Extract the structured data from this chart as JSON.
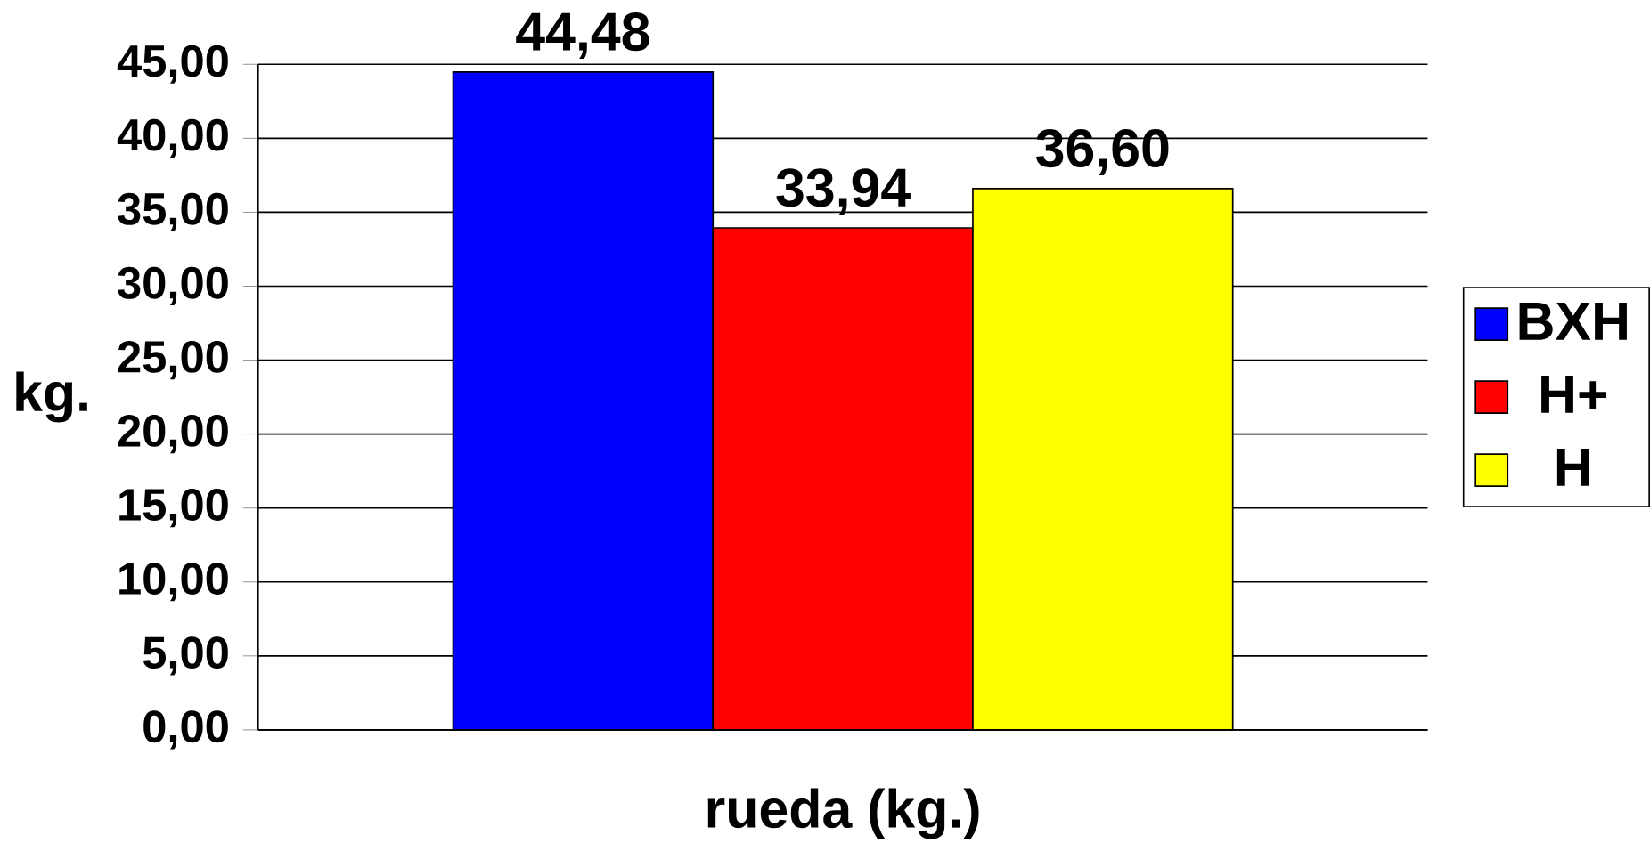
{
  "chart_data": {
    "type": "bar",
    "categories": [
      "rueda (kg.)"
    ],
    "ylabel": "kg.",
    "series": [
      {
        "name": "BXH",
        "color": "#0000ff",
        "values": [
          44.48
        ],
        "value_labels": [
          "44,48"
        ]
      },
      {
        "name": "H+",
        "color": "#ff0000",
        "values": [
          33.94
        ],
        "value_labels": [
          "33,94"
        ]
      },
      {
        "name": "H",
        "color": "#ffff00",
        "values": [
          36.6
        ],
        "value_labels": [
          "36,60"
        ]
      }
    ],
    "ylim": [
      0,
      45
    ],
    "yticks": [
      {
        "value": 0,
        "label": "0,00"
      },
      {
        "value": 5,
        "label": "5,00"
      },
      {
        "value": 10,
        "label": "10,00"
      },
      {
        "value": 15,
        "label": "15,00"
      },
      {
        "value": 20,
        "label": "20,00"
      },
      {
        "value": 25,
        "label": "25,00"
      },
      {
        "value": 30,
        "label": "30,00"
      },
      {
        "value": 35,
        "label": "35,00"
      },
      {
        "value": 40,
        "label": "40,00"
      },
      {
        "value": 45,
        "label": "45,00"
      }
    ],
    "grid": "y",
    "legend": "right"
  }
}
